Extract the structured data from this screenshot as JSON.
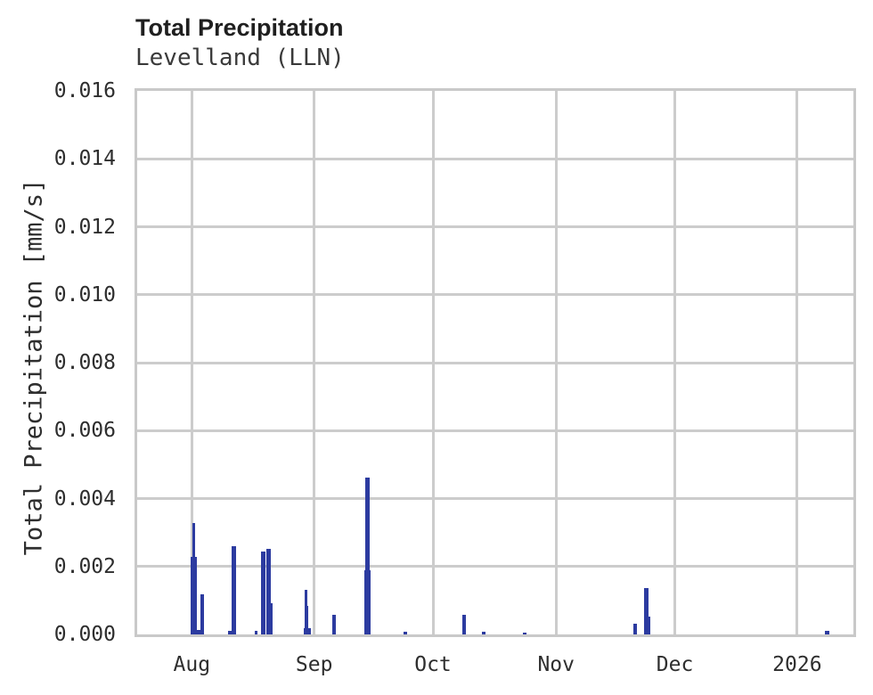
{
  "header": {
    "title": "Total Precipitation",
    "subtitle": "Levelland (LLN)"
  },
  "colors": {
    "bar": "#2c3ba0",
    "grid": "#cccccc",
    "axis_border": "#c9c9c9",
    "title_text": "#1f1f1f",
    "subtitle_text": "#3a3a3a",
    "tick_text": "#2e2e2e"
  },
  "chart_data": {
    "type": "bar",
    "title": "Total Precipitation",
    "subtitle": "Levelland (LLN)",
    "xlabel": "",
    "ylabel": "Total Precipitation [mm/s]",
    "ylim": [
      0,
      0.016
    ],
    "grid": true,
    "legend": false,
    "y_ticks": [
      "0.000",
      "0.002",
      "0.004",
      "0.006",
      "0.008",
      "0.010",
      "0.012",
      "0.014",
      "0.016"
    ],
    "x_domain_days": [
      0,
      180.9
    ],
    "x_ticks": [
      {
        "label": "Aug",
        "day": 13.8
      },
      {
        "label": "Sep",
        "day": 44.7
      },
      {
        "label": "Oct",
        "day": 74.7
      },
      {
        "label": "Nov",
        "day": 105.8
      },
      {
        "label": "Dec",
        "day": 135.8
      },
      {
        "label": "2026",
        "day": 166.7
      }
    ],
    "bars": [
      {
        "d0": 13.49,
        "d1": 14.98,
        "v": 0.00227
      },
      {
        "d0": 13.93,
        "d1": 14.53,
        "v": 0.00327
      },
      {
        "d0": 14.83,
        "d1": 15.95,
        "v": 0.00014
      },
      {
        "d0": 15.95,
        "d1": 16.84,
        "v": 0.00119
      },
      {
        "d0": 22.97,
        "d1": 23.93,
        "v": 0.0001
      },
      {
        "d0": 23.93,
        "d1": 24.89,
        "v": 0.0026
      },
      {
        "d0": 29.74,
        "d1": 30.48,
        "v": 0.0001
      },
      {
        "d0": 31.24,
        "d1": 32.36,
        "v": 0.00244
      },
      {
        "d0": 32.72,
        "d1": 33.84,
        "v": 0.00252
      },
      {
        "d0": 33.4,
        "d1": 34.2,
        "v": 0.00092
      },
      {
        "d0": 41.97,
        "d1": 43.83,
        "v": 0.00018
      },
      {
        "d0": 42.2,
        "d1": 43.3,
        "v": 0.00084
      },
      {
        "d0": 42.33,
        "d1": 42.93,
        "v": 0.00131
      },
      {
        "d0": 49.35,
        "d1": 50.25,
        "v": 0.00057
      },
      {
        "d0": 57.31,
        "d1": 59.03,
        "v": 0.00188
      },
      {
        "d0": 57.69,
        "d1": 58.65,
        "v": 0.00462
      },
      {
        "d0": 67.3,
        "d1": 68.2,
        "v": 8e-05
      },
      {
        "d0": 82.07,
        "d1": 82.96,
        "v": 0.00059
      },
      {
        "d0": 86.99,
        "d1": 87.88,
        "v": 7e-05
      },
      {
        "d0": 97.38,
        "d1": 98.28,
        "v": 6e-05
      },
      {
        "d0": 125.38,
        "d1": 126.27,
        "v": 0.00031
      },
      {
        "d0": 128.13,
        "d1": 129.25,
        "v": 0.00136
      },
      {
        "d0": 128.87,
        "d1": 129.63,
        "v": 0.00053
      },
      {
        "d0": 173.75,
        "d1": 174.75,
        "v": 0.0001
      }
    ]
  }
}
